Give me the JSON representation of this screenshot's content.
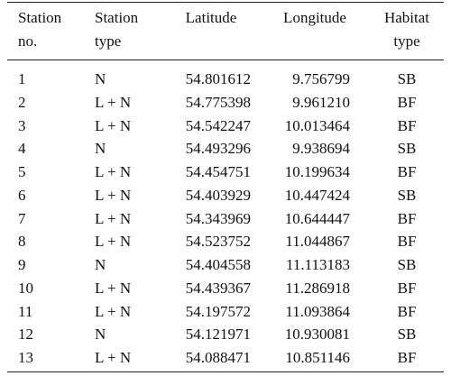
{
  "table": {
    "header": [
      [
        "Station",
        "no."
      ],
      [
        "Station",
        "type"
      ],
      [
        "Latitude"
      ],
      [
        "Longitude"
      ],
      [
        "Habitat",
        "type"
      ]
    ],
    "rows": [
      [
        "1",
        "N",
        "54.801612",
        "9.756799",
        "SB"
      ],
      [
        "2",
        "L + N",
        "54.775398",
        "9.961210",
        "BF"
      ],
      [
        "3",
        "L + N",
        "54.542247",
        "10.013464",
        "BF"
      ],
      [
        "4",
        "N",
        "54.493296",
        "9.938694",
        "SB"
      ],
      [
        "5",
        "L + N",
        "54.454751",
        "10.199634",
        "BF"
      ],
      [
        "6",
        "L + N",
        "54.403929",
        "10.447424",
        "SB"
      ],
      [
        "7",
        "L + N",
        "54.343969",
        "10.644447",
        "BF"
      ],
      [
        "8",
        "L + N",
        "54.523752",
        "11.044867",
        "BF"
      ],
      [
        "9",
        "N",
        "54.404558",
        "11.113183",
        "SB"
      ],
      [
        "10",
        "L + N",
        "54.439367",
        "11.286918",
        "BF"
      ],
      [
        "11",
        "L + N",
        "54.197572",
        "11.093864",
        "BF"
      ],
      [
        "12",
        "N",
        "54.121971",
        "10.930081",
        "SB"
      ],
      [
        "13",
        "L + N",
        "54.088471",
        "10.851146",
        "BF"
      ]
    ]
  }
}
